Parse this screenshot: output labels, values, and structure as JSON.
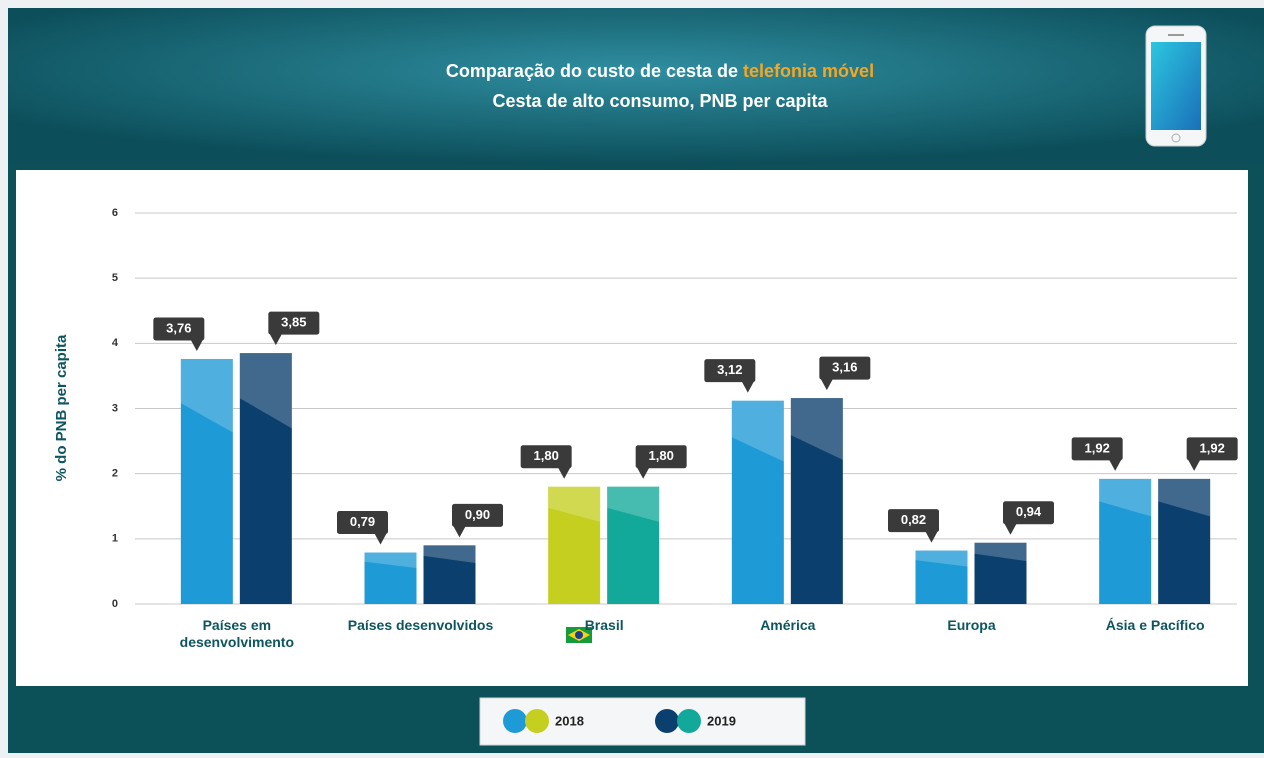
{
  "chart_data": {
    "type": "bar",
    "title": "Comparação do custo de cesta de",
    "title_highlight": "telefonia móvel",
    "subtitle": "Cesta de alto consumo, PNB per capita",
    "ylabel": "% do PNB per capita",
    "categories": [
      "Países em desenvolvimento",
      "Países desenvolvidos",
      "Brasil",
      "América",
      "Europa",
      "Ásia e Pacífico"
    ],
    "series": [
      {
        "name": "2018",
        "color": "#1e9ad6",
        "colors": [
          "#1e9ad6",
          "#1e9ad6",
          "#c5cf1f",
          "#1e9ad6",
          "#1e9ad6",
          "#1e9ad6"
        ],
        "values": [
          3.76,
          0.79,
          1.8,
          3.12,
          0.82,
          1.92
        ],
        "value_labels": [
          "3,76",
          "0,79",
          "1,80",
          "3,12",
          "0,82",
          "1,92"
        ]
      },
      {
        "name": "2019",
        "color": "#0b3f6e",
        "colors": [
          "#0b3f6e",
          "#0b3f6e",
          "#13a99a",
          "#0b3f6e",
          "#0b3f6e",
          "#0b3f6e"
        ],
        "values": [
          3.85,
          0.9,
          1.8,
          3.16,
          0.94,
          1.92
        ],
        "value_labels": [
          "3,85",
          "0,90",
          "1,80",
          "3,16",
          "0,94",
          "1,92"
        ]
      }
    ],
    "ylim": [
      0,
      6
    ],
    "yticks": [
      0,
      1,
      2,
      3,
      4,
      5,
      6
    ],
    "grid": true
  }
}
